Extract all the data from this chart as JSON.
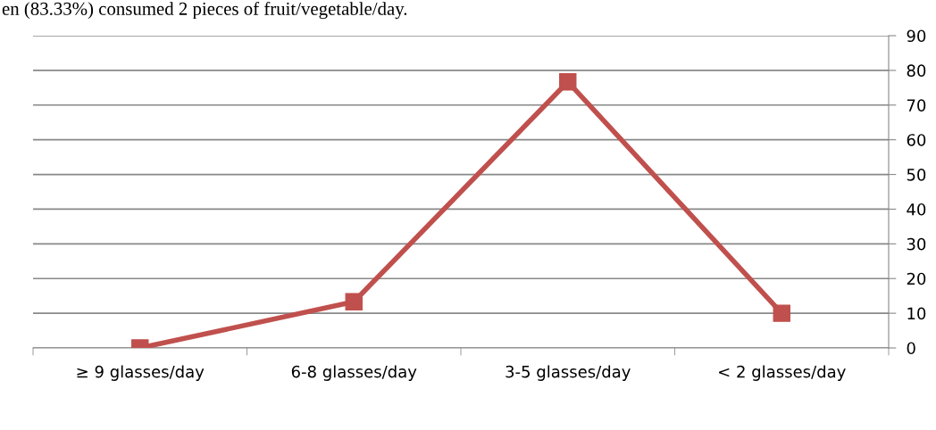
{
  "chart_data": {
    "type": "line",
    "categories": [
      "≥ 9 glasses/day",
      "6-8 glasses/day",
      "3-5 glasses/day",
      "< 2 glasses/day"
    ],
    "series": [
      {
        "color": "#c0504d",
        "values": [
          0,
          13.3,
          76.7,
          10
        ]
      }
    ],
    "ylim": [
      0,
      90
    ],
    "yticks": [
      0,
      10,
      20,
      30,
      40,
      50,
      60,
      70,
      80,
      90
    ],
    "grid": "y",
    "marker": "square",
    "line_style": "solid",
    "annotations": [
      "en (83.33%) consumed 2 pieces of fruit/vegetable/day."
    ]
  }
}
